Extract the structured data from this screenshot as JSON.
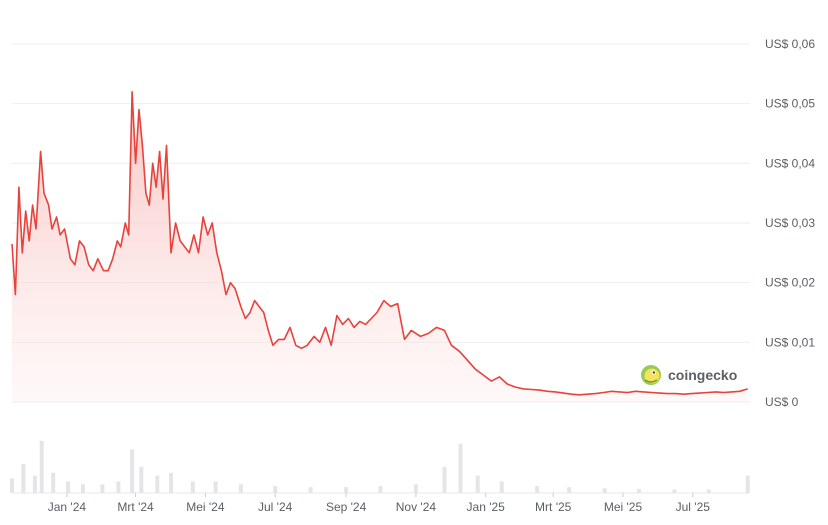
{
  "chart_data": {
    "type": "line",
    "title": "",
    "xlabel": "",
    "ylabel": "",
    "ylim": [
      0,
      0.06
    ],
    "y_ticks": [
      {
        "value": 0,
        "label": "US$ 0"
      },
      {
        "value": 0.01,
        "label": "US$ 0,01"
      },
      {
        "value": 0.02,
        "label": "US$ 0,02"
      },
      {
        "value": 0.03,
        "label": "US$ 0,03"
      },
      {
        "value": 0.04,
        "label": "US$ 0,04"
      },
      {
        "value": 0.05,
        "label": "US$ 0,05"
      },
      {
        "value": 0.06,
        "label": "US$ 0,06"
      }
    ],
    "x_ticks": [
      {
        "date": "2024-01-01",
        "label": "Jan '24"
      },
      {
        "date": "2024-03-01",
        "label": "Mrt '24"
      },
      {
        "date": "2024-05-01",
        "label": "Mei '24"
      },
      {
        "date": "2024-07-01",
        "label": "Jul '24"
      },
      {
        "date": "2024-09-01",
        "label": "Sep '24"
      },
      {
        "date": "2024-11-01",
        "label": "Nov '24"
      },
      {
        "date": "2025-01-01",
        "label": "Jan '25"
      },
      {
        "date": "2025-03-01",
        "label": "Mrt '25"
      },
      {
        "date": "2025-05-01",
        "label": "Mei '25"
      },
      {
        "date": "2025-07-01",
        "label": "Jul '25"
      }
    ],
    "grid": true,
    "legend": "none",
    "line_color": "#e8423c",
    "area_color": "#f7c9c7",
    "volume_color": "#e3e5e8",
    "series": [
      {
        "points": [
          [
            "2023-11-14",
            0.0265
          ],
          [
            "2023-11-17",
            0.018
          ],
          [
            "2023-11-20",
            0.036
          ],
          [
            "2023-11-23",
            0.025
          ],
          [
            "2023-11-26",
            0.032
          ],
          [
            "2023-11-29",
            0.027
          ],
          [
            "2023-12-02",
            0.033
          ],
          [
            "2023-12-05",
            0.029
          ],
          [
            "2023-12-09",
            0.042
          ],
          [
            "2023-12-12",
            0.035
          ],
          [
            "2023-12-16",
            0.033
          ],
          [
            "2023-12-19",
            0.029
          ],
          [
            "2023-12-23",
            0.031
          ],
          [
            "2023-12-26",
            0.028
          ],
          [
            "2023-12-30",
            0.029
          ],
          [
            "2024-01-04",
            0.024
          ],
          [
            "2024-01-08",
            0.023
          ],
          [
            "2024-01-12",
            0.027
          ],
          [
            "2024-01-16",
            0.026
          ],
          [
            "2024-01-20",
            0.023
          ],
          [
            "2024-01-24",
            0.022
          ],
          [
            "2024-01-28",
            0.024
          ],
          [
            "2024-02-02",
            0.022
          ],
          [
            "2024-02-06",
            0.022
          ],
          [
            "2024-02-10",
            0.024
          ],
          [
            "2024-02-14",
            0.027
          ],
          [
            "2024-02-17",
            0.026
          ],
          [
            "2024-02-21",
            0.03
          ],
          [
            "2024-02-24",
            0.028
          ],
          [
            "2024-02-27",
            0.052
          ],
          [
            "2024-03-01",
            0.04
          ],
          [
            "2024-03-04",
            0.049
          ],
          [
            "2024-03-07",
            0.043
          ],
          [
            "2024-03-10",
            0.035
          ],
          [
            "2024-03-13",
            0.033
          ],
          [
            "2024-03-16",
            0.04
          ],
          [
            "2024-03-19",
            0.036
          ],
          [
            "2024-03-22",
            0.042
          ],
          [
            "2024-03-25",
            0.034
          ],
          [
            "2024-03-28",
            0.043
          ],
          [
            "2024-04-01",
            0.025
          ],
          [
            "2024-04-05",
            0.03
          ],
          [
            "2024-04-09",
            0.027
          ],
          [
            "2024-04-13",
            0.026
          ],
          [
            "2024-04-17",
            0.025
          ],
          [
            "2024-04-21",
            0.028
          ],
          [
            "2024-04-25",
            0.025
          ],
          [
            "2024-04-29",
            0.031
          ],
          [
            "2024-05-03",
            0.028
          ],
          [
            "2024-05-07",
            0.03
          ],
          [
            "2024-05-11",
            0.025
          ],
          [
            "2024-05-15",
            0.022
          ],
          [
            "2024-05-19",
            0.018
          ],
          [
            "2024-05-23",
            0.02
          ],
          [
            "2024-05-27",
            0.019
          ],
          [
            "2024-06-01",
            0.016
          ],
          [
            "2024-06-05",
            0.014
          ],
          [
            "2024-06-09",
            0.015
          ],
          [
            "2024-06-13",
            0.017
          ],
          [
            "2024-06-17",
            0.016
          ],
          [
            "2024-06-21",
            0.015
          ],
          [
            "2024-06-25",
            0.012
          ],
          [
            "2024-06-29",
            0.0095
          ],
          [
            "2024-07-04",
            0.0105
          ],
          [
            "2024-07-09",
            0.0105
          ],
          [
            "2024-07-14",
            0.0125
          ],
          [
            "2024-07-19",
            0.0095
          ],
          [
            "2024-07-24",
            0.009
          ],
          [
            "2024-07-29",
            0.0095
          ],
          [
            "2024-08-04",
            0.011
          ],
          [
            "2024-08-09",
            0.01
          ],
          [
            "2024-08-14",
            0.0125
          ],
          [
            "2024-08-19",
            0.0095
          ],
          [
            "2024-08-24",
            0.0145
          ],
          [
            "2024-08-29",
            0.013
          ],
          [
            "2024-09-03",
            0.014
          ],
          [
            "2024-09-08",
            0.0125
          ],
          [
            "2024-09-13",
            0.0135
          ],
          [
            "2024-09-18",
            0.013
          ],
          [
            "2024-09-23",
            0.014
          ],
          [
            "2024-09-28",
            0.015
          ],
          [
            "2024-10-04",
            0.017
          ],
          [
            "2024-10-10",
            0.016
          ],
          [
            "2024-10-16",
            0.0165
          ],
          [
            "2024-10-22",
            0.0105
          ],
          [
            "2024-10-28",
            0.012
          ],
          [
            "2024-11-05",
            0.011
          ],
          [
            "2024-11-12",
            0.0115
          ],
          [
            "2024-11-19",
            0.0125
          ],
          [
            "2024-11-26",
            0.012
          ],
          [
            "2024-12-02",
            0.0095
          ],
          [
            "2024-12-09",
            0.0085
          ],
          [
            "2024-12-16",
            0.007
          ],
          [
            "2024-12-23",
            0.0055
          ],
          [
            "2024-12-30",
            0.0045
          ],
          [
            "2025-01-06",
            0.0035
          ],
          [
            "2025-01-13",
            0.0042
          ],
          [
            "2025-01-20",
            0.003
          ],
          [
            "2025-01-27",
            0.0025
          ],
          [
            "2025-02-03",
            0.0022
          ],
          [
            "2025-02-10",
            0.0021
          ],
          [
            "2025-02-17",
            0.002
          ],
          [
            "2025-02-24",
            0.0018
          ],
          [
            "2025-03-03",
            0.0017
          ],
          [
            "2025-03-10",
            0.0015
          ],
          [
            "2025-03-17",
            0.0013
          ],
          [
            "2025-03-24",
            0.0012
          ],
          [
            "2025-03-31",
            0.0013
          ],
          [
            "2025-04-07",
            0.0014
          ],
          [
            "2025-04-14",
            0.0016
          ],
          [
            "2025-04-21",
            0.0018
          ],
          [
            "2025-04-28",
            0.0017
          ],
          [
            "2025-05-05",
            0.0016
          ],
          [
            "2025-05-12",
            0.0018
          ],
          [
            "2025-05-19",
            0.0017
          ],
          [
            "2025-05-26",
            0.0016
          ],
          [
            "2025-06-02",
            0.0015
          ],
          [
            "2025-06-09",
            0.0014
          ],
          [
            "2025-06-16",
            0.0014
          ],
          [
            "2025-06-23",
            0.0013
          ],
          [
            "2025-06-30",
            0.0014
          ],
          [
            "2025-07-07",
            0.0015
          ],
          [
            "2025-07-14",
            0.0016
          ],
          [
            "2025-07-21",
            0.0017
          ],
          [
            "2025-07-28",
            0.0016
          ],
          [
            "2025-08-04",
            0.0017
          ],
          [
            "2025-08-11",
            0.0018
          ],
          [
            "2025-08-18",
            0.0022
          ]
        ]
      }
    ],
    "volume": [
      [
        "2023-11-14",
        0.25
      ],
      [
        "2023-11-24",
        0.5
      ],
      [
        "2023-12-04",
        0.3
      ],
      [
        "2023-12-10",
        0.9
      ],
      [
        "2023-12-20",
        0.35
      ],
      [
        "2024-01-02",
        0.2
      ],
      [
        "2024-01-15",
        0.15
      ],
      [
        "2024-02-01",
        0.15
      ],
      [
        "2024-02-15",
        0.2
      ],
      [
        "2024-02-27",
        0.75
      ],
      [
        "2024-03-06",
        0.45
      ],
      [
        "2024-03-20",
        0.3
      ],
      [
        "2024-04-01",
        0.35
      ],
      [
        "2024-04-20",
        0.2
      ],
      [
        "2024-05-10",
        0.2
      ],
      [
        "2024-06-01",
        0.15
      ],
      [
        "2024-07-01",
        0.12
      ],
      [
        "2024-08-01",
        0.1
      ],
      [
        "2024-09-01",
        0.1
      ],
      [
        "2024-10-01",
        0.12
      ],
      [
        "2024-11-01",
        0.15
      ],
      [
        "2024-11-26",
        0.45
      ],
      [
        "2024-12-10",
        0.85
      ],
      [
        "2024-12-25",
        0.3
      ],
      [
        "2025-01-15",
        0.2
      ],
      [
        "2025-02-15",
        0.12
      ],
      [
        "2025-03-15",
        0.1
      ],
      [
        "2025-04-15",
        0.08
      ],
      [
        "2025-05-15",
        0.07
      ],
      [
        "2025-06-15",
        0.06
      ],
      [
        "2025-07-15",
        0.06
      ],
      [
        "2025-08-18",
        0.3
      ]
    ]
  },
  "watermark": {
    "text": "coingecko",
    "icon": "gecko-icon"
  }
}
